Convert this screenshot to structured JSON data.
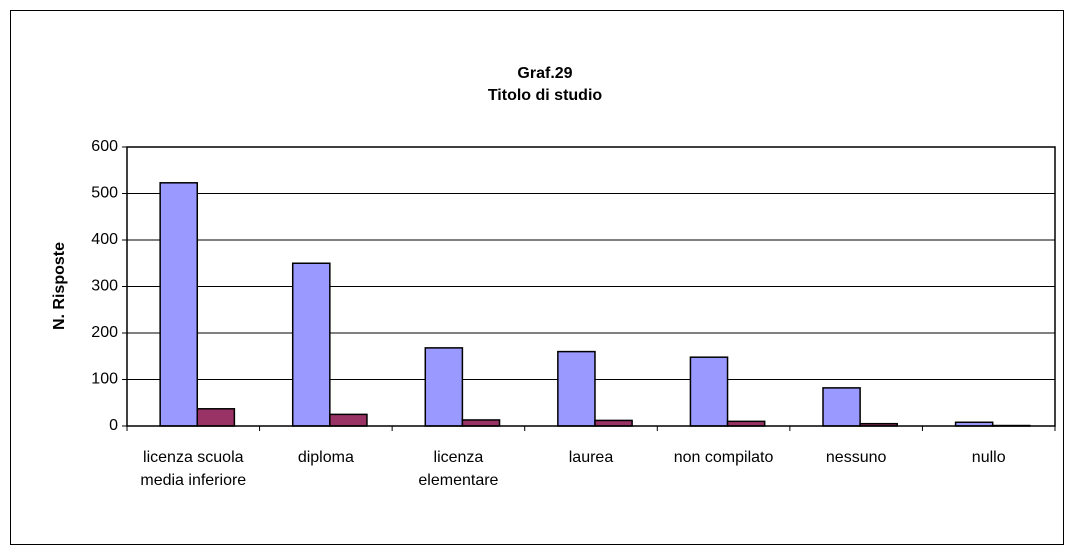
{
  "chart_data": {
    "type": "bar",
    "title": "Graf.29",
    "subtitle": "Titolo di studio",
    "y_label": "N. Risposte",
    "categories": [
      "licenza scuola media inferiore",
      "diploma",
      "licenza elementare",
      "laurea",
      "non compilato",
      "nessuno",
      "nullo"
    ],
    "series": [
      {
        "color": "#9999ff",
        "values": [
          523,
          350,
          168,
          160,
          148,
          82,
          8
        ]
      },
      {
        "color": "#993366",
        "values": [
          37,
          25,
          13,
          12,
          10,
          5,
          1
        ]
      }
    ],
    "ylim": [
      0,
      600
    ],
    "yticks": [
      0,
      100,
      200,
      300,
      400,
      500,
      600
    ],
    "grid": true
  }
}
